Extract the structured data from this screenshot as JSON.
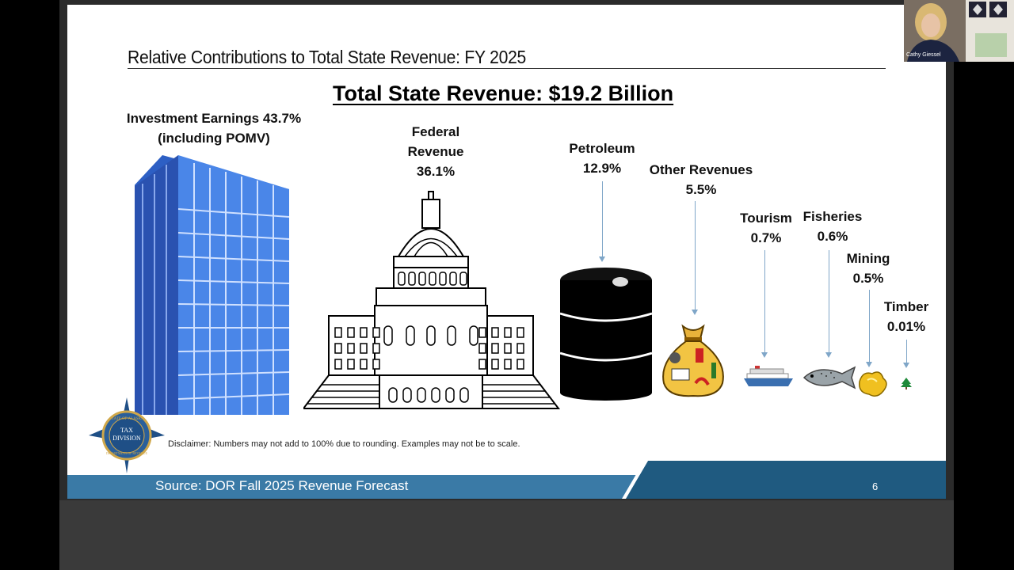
{
  "slide": {
    "title": "Relative Contributions to Total State Revenue: FY 2025",
    "headline": "Total State Revenue: $19.2 Billion",
    "disclaimer": "Disclaimer: Numbers may not add to 100% due to rounding. Examples may not be to scale.",
    "source": "Source: DOR Fall 2025 Revenue Forecast",
    "page_number": "6",
    "seal_text": [
      "STATE OF ALASKA",
      "TAX",
      "DIVISION",
      "DEPARTMENT OF REVENUE"
    ]
  },
  "categories": [
    {
      "name": "Investment Earnings 43.7%",
      "sub": "(including POMV)",
      "icon": "office-building-icon"
    },
    {
      "name": "Federal",
      "name2": "Revenue",
      "pct": "36.1%",
      "icon": "capitol-building-icon"
    },
    {
      "name": "Petroleum",
      "pct": "12.9%",
      "icon": "oil-barrel-icon"
    },
    {
      "name": "Other Revenues",
      "pct": "5.5%",
      "icon": "money-bag-icon"
    },
    {
      "name": "Tourism",
      "pct": "0.7%",
      "icon": "cruise-ship-icon"
    },
    {
      "name": "Fisheries",
      "pct": "0.6%",
      "icon": "fish-icon"
    },
    {
      "name": "Mining",
      "pct": "0.5%",
      "icon": "gold-nugget-icon"
    },
    {
      "name": "Timber",
      "pct": "0.01%",
      "icon": "tree-icon"
    }
  ],
  "webcam": {
    "participant_name": "Cathy Giessel"
  },
  "colors": {
    "footer": "#3a7aa6",
    "footer_dark": "#1f5a80",
    "building": "#3b6fd6",
    "arrow": "#7fa6c8"
  }
}
